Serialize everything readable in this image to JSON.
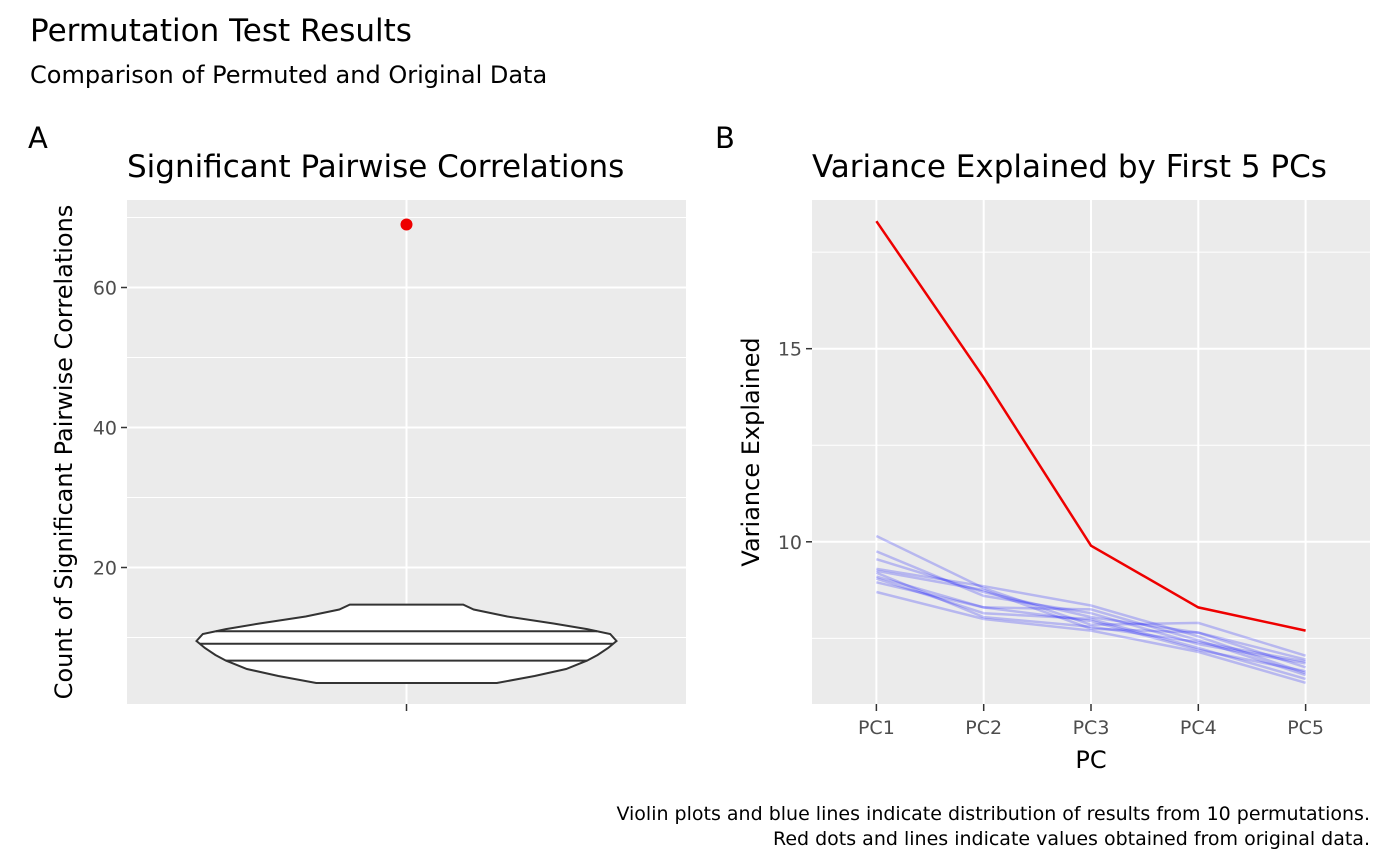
{
  "figure": {
    "title": "Permutation Test Results",
    "subtitle": "Comparison of Permuted and Original Data",
    "caption_lines": [
      "Violin plots and blue lines indicate distribution of results from 10 permutations.",
      "Red dots and lines indicate values obtained from original data."
    ],
    "colors": {
      "original": "#ee0000",
      "permuted": "#0000ff",
      "panel_bg": "#ebebeb",
      "grid": "#ffffff",
      "violin_line": "#333333"
    }
  },
  "chart_data": [
    {
      "tag": "A",
      "type": "violin",
      "title": "Significant Pairwise Correlations",
      "xlabel": "",
      "ylabel": "Count of Significant Pairwise Correlations",
      "ylim": [
        0.5,
        72.5
      ],
      "yticks": [
        20,
        40,
        60
      ],
      "violin": {
        "min": 3.5,
        "max": 14.7,
        "quantiles": [
          6.7,
          9.1,
          10.9
        ],
        "density_profile": [
          {
            "y": 3.5,
            "w": 0.43
          },
          {
            "y": 4.5,
            "w": 0.61
          },
          {
            "y": 5.5,
            "w": 0.76
          },
          {
            "y": 6.7,
            "w": 0.86
          },
          {
            "y": 7.5,
            "w": 0.91
          },
          {
            "y": 8.5,
            "w": 0.96
          },
          {
            "y": 9.5,
            "w": 1.0
          },
          {
            "y": 10.5,
            "w": 0.97
          },
          {
            "y": 11.2,
            "w": 0.86
          },
          {
            "y": 12.0,
            "w": 0.7
          },
          {
            "y": 13.0,
            "w": 0.48
          },
          {
            "y": 14.0,
            "w": 0.32
          },
          {
            "y": 14.7,
            "w": 0.27
          }
        ]
      },
      "original_point": 69
    },
    {
      "tag": "B",
      "type": "line",
      "title": "Variance Explained by First 5 PCs",
      "xlabel": "PC",
      "ylabel": "Variance Explained",
      "categories": [
        "PC1",
        "PC2",
        "PC3",
        "PC4",
        "PC5"
      ],
      "ylim": [
        5.8,
        18.85
      ],
      "yticks": [
        10,
        15
      ],
      "original": {
        "values": [
          18.3,
          14.25,
          9.9,
          8.3,
          7.7
        ]
      },
      "permutations": [
        {
          "values": [
            10.15,
            8.8,
            7.85,
            7.9,
            7.05
          ]
        },
        {
          "values": [
            9.75,
            8.6,
            8.15,
            7.35,
            6.85
          ]
        },
        {
          "values": [
            9.55,
            8.7,
            8.05,
            7.65,
            6.75
          ]
        },
        {
          "values": [
            9.3,
            8.85,
            8.35,
            7.55,
            6.6
          ]
        },
        {
          "values": [
            9.25,
            8.75,
            7.75,
            7.65,
            6.95
          ]
        },
        {
          "values": [
            9.1,
            8.3,
            8.25,
            7.45,
            6.55
          ]
        },
        {
          "values": [
            9.05,
            8.15,
            8.0,
            7.25,
            6.45
          ]
        },
        {
          "values": [
            8.95,
            8.3,
            7.95,
            7.2,
            6.65
          ]
        },
        {
          "values": [
            8.7,
            8.0,
            7.7,
            7.15,
            6.35
          ]
        },
        {
          "values": [
            9.2,
            8.05,
            7.8,
            7.4,
            6.9
          ]
        }
      ]
    }
  ]
}
